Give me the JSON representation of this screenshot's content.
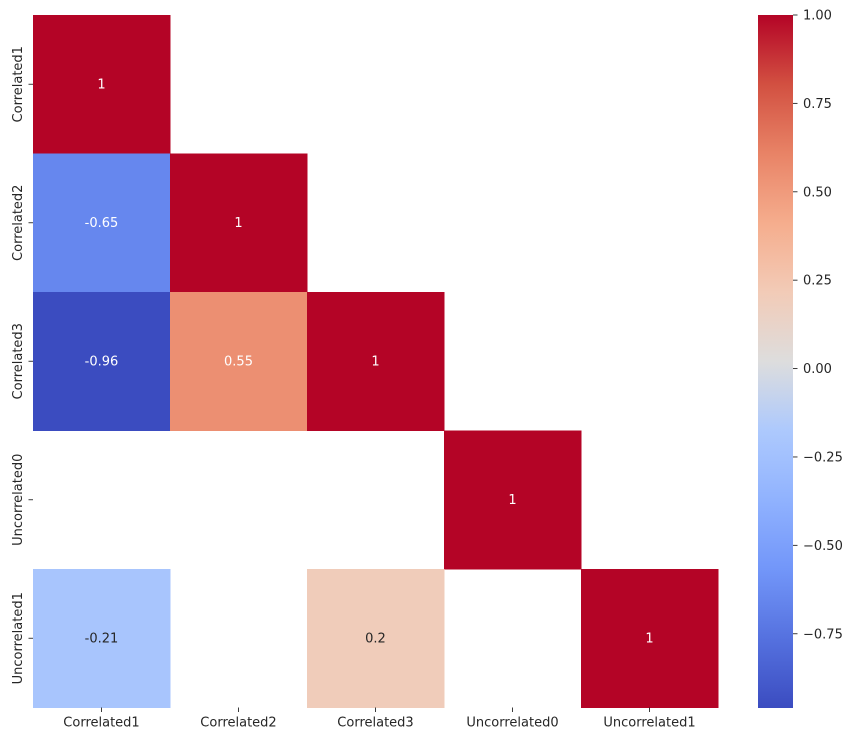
{
  "chart_data": {
    "type": "heatmap",
    "title": "",
    "xlabel": "",
    "ylabel": "",
    "x_categories": [
      "Correlated1",
      "Correlated2",
      "Correlated3",
      "Uncorrelated0",
      "Uncorrelated1"
    ],
    "y_categories": [
      "Correlated1",
      "Correlated2",
      "Correlated3",
      "Uncorrelated0",
      "Uncorrelated1"
    ],
    "values": [
      [
        1,
        null,
        null,
        null,
        null
      ],
      [
        -0.65,
        1,
        null,
        null,
        null
      ],
      [
        -0.96,
        0.55,
        1,
        null,
        null
      ],
      [
        null,
        null,
        null,
        1,
        null
      ],
      [
        -0.21,
        null,
        0.2,
        null,
        1
      ]
    ],
    "annotations": [
      [
        "1",
        "",
        "",
        "",
        ""
      ],
      [
        "-0.65",
        "1",
        "",
        "",
        ""
      ],
      [
        "-0.96",
        "0.55",
        "1",
        "",
        ""
      ],
      [
        "",
        "",
        "",
        "1",
        ""
      ],
      [
        "-0.21",
        "",
        "0.2",
        "",
        "1"
      ]
    ],
    "colormap": "coolwarm",
    "colorbar": {
      "vmin": -0.96,
      "vmax": 1.0,
      "ticks": [
        1.0,
        0.75,
        0.5,
        0.25,
        0.0,
        -0.25,
        -0.5,
        -0.75
      ],
      "tick_labels": [
        "1.00",
        "0.75",
        "0.50",
        "0.25",
        "0.00",
        "−0.25",
        "−0.50",
        "−0.75"
      ]
    }
  }
}
